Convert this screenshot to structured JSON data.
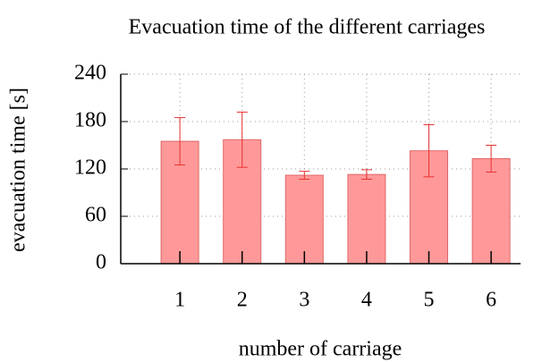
{
  "chart_data": {
    "type": "bar",
    "title": "Evacuation time of the different carriages",
    "xlabel": "number of carriage",
    "ylabel": "evacuation time [s]",
    "categories": [
      "1",
      "2",
      "3",
      "4",
      "5",
      "6"
    ],
    "values": [
      155,
      157,
      112,
      113,
      143,
      133
    ],
    "errors": [
      30,
      35,
      5,
      6,
      33,
      17
    ],
    "color": "#ff9999",
    "edge_color": "#e06666",
    "error_color": "#e83030",
    "ylim": [
      0,
      240
    ],
    "yticks": [
      0,
      60,
      120,
      180,
      240
    ],
    "grid": true
  }
}
